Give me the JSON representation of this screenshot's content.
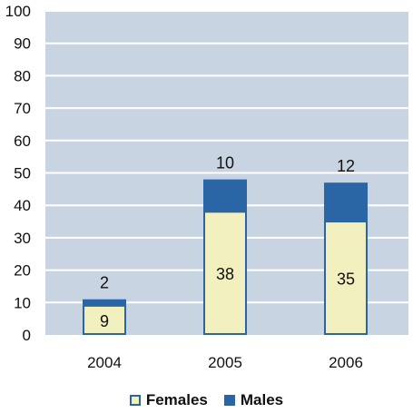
{
  "chart_data": {
    "type": "bar",
    "stacked": true,
    "categories": [
      "2004",
      "2005",
      "2006"
    ],
    "series": [
      {
        "name": "Females",
        "values": [
          9,
          38,
          35
        ],
        "color": "#f3f0c0",
        "border": "#2a66a6"
      },
      {
        "name": "Males",
        "values": [
          2,
          10,
          12
        ],
        "color": "#2a66a6"
      }
    ],
    "ylim": [
      0,
      100
    ],
    "yticks": [
      "0",
      "10",
      "20",
      "30",
      "40",
      "50",
      "60",
      "70",
      "80",
      "90",
      "100"
    ],
    "grid": true,
    "plot_background": "#c9d4e2",
    "legend_position": "bottom",
    "data_labels": {
      "Females": [
        "9",
        "38",
        "35"
      ],
      "Males": [
        "2",
        "10",
        "12"
      ]
    }
  },
  "legend": {
    "females_label": "Females",
    "males_label": "Males"
  }
}
